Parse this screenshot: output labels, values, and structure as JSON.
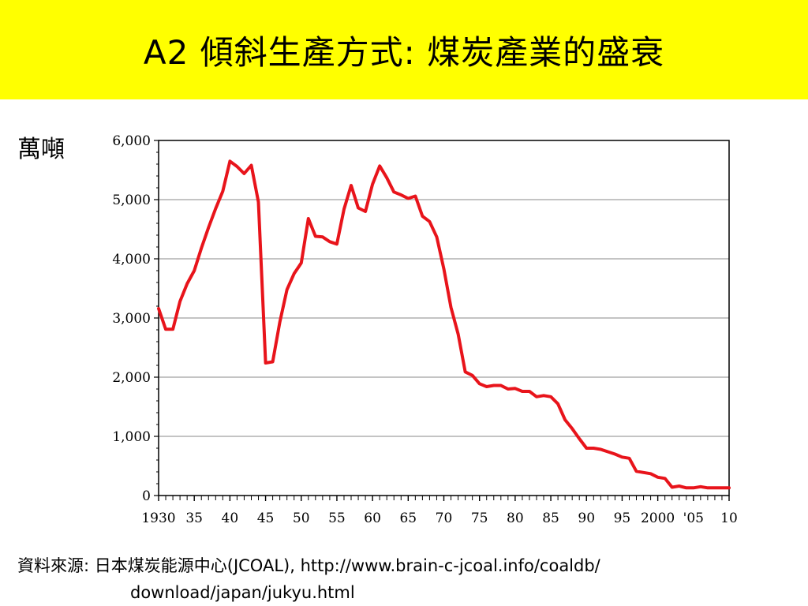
{
  "title": "A2  傾斜生產方式: 煤炭產業的盛衰",
  "unit_label": "萬噸",
  "source": {
    "line1": "資料來源:  日本煤炭能源中心(JCOAL), http://www.brain-c-jcoal.info/coaldb/",
    "line2": "download/japan/jukyu.html"
  },
  "colors": {
    "title_background": "#ffff00",
    "series_line": "#e8141b",
    "grid": "#888888"
  },
  "chart_data": {
    "type": "line",
    "title": "",
    "xlabel": "",
    "ylabel": "萬噸",
    "xlim": [
      1930,
      2010
    ],
    "ylim": [
      0,
      6000
    ],
    "grid": true,
    "y_ticks": [
      0,
      1000,
      2000,
      3000,
      4000,
      5000,
      6000
    ],
    "y_tick_labels": [
      "0",
      "1,000",
      "2,000",
      "3,000",
      "4,000",
      "5,000",
      "6,000"
    ],
    "x_ticks": [
      1930,
      1935,
      1940,
      1945,
      1950,
      1955,
      1960,
      1965,
      1970,
      1975,
      1980,
      1985,
      1990,
      1995,
      2000,
      2005,
      2010
    ],
    "x_tick_labels": [
      "1930",
      "35",
      "40",
      "45",
      "50",
      "55",
      "60",
      "65",
      "70",
      "75",
      "80",
      "85",
      "90",
      "95",
      "2000",
      "'05",
      "10"
    ],
    "series": [
      {
        "values": [
          [
            1930,
            3160
          ],
          [
            1931,
            2810
          ],
          [
            1932,
            2810
          ],
          [
            1933,
            3280
          ],
          [
            1934,
            3580
          ],
          [
            1935,
            3800
          ],
          [
            1936,
            4180
          ],
          [
            1937,
            4530
          ],
          [
            1938,
            4850
          ],
          [
            1939,
            5140
          ],
          [
            1940,
            5650
          ],
          [
            1941,
            5560
          ],
          [
            1942,
            5440
          ],
          [
            1943,
            5580
          ],
          [
            1944,
            4960
          ],
          [
            1945,
            2240
          ],
          [
            1946,
            2260
          ],
          [
            1947,
            2930
          ],
          [
            1948,
            3480
          ],
          [
            1949,
            3750
          ],
          [
            1950,
            3930
          ],
          [
            1951,
            4680
          ],
          [
            1952,
            4380
          ],
          [
            1953,
            4370
          ],
          [
            1954,
            4290
          ],
          [
            1955,
            4250
          ],
          [
            1956,
            4840
          ],
          [
            1957,
            5240
          ],
          [
            1958,
            4860
          ],
          [
            1959,
            4800
          ],
          [
            1960,
            5260
          ],
          [
            1961,
            5570
          ],
          [
            1962,
            5370
          ],
          [
            1963,
            5130
          ],
          [
            1964,
            5080
          ],
          [
            1965,
            5020
          ],
          [
            1966,
            5060
          ],
          [
            1967,
            4720
          ],
          [
            1968,
            4630
          ],
          [
            1969,
            4370
          ],
          [
            1970,
            3830
          ],
          [
            1971,
            3180
          ],
          [
            1972,
            2730
          ],
          [
            1973,
            2090
          ],
          [
            1974,
            2030
          ],
          [
            1975,
            1890
          ],
          [
            1976,
            1840
          ],
          [
            1977,
            1860
          ],
          [
            1978,
            1860
          ],
          [
            1979,
            1800
          ],
          [
            1980,
            1810
          ],
          [
            1981,
            1760
          ],
          [
            1982,
            1760
          ],
          [
            1983,
            1670
          ],
          [
            1984,
            1690
          ],
          [
            1985,
            1670
          ],
          [
            1986,
            1550
          ],
          [
            1987,
            1280
          ],
          [
            1988,
            1130
          ],
          [
            1989,
            960
          ],
          [
            1990,
            800
          ],
          [
            1991,
            800
          ],
          [
            1992,
            780
          ],
          [
            1993,
            740
          ],
          [
            1994,
            700
          ],
          [
            1995,
            650
          ],
          [
            1996,
            630
          ],
          [
            1997,
            410
          ],
          [
            1998,
            390
          ],
          [
            1999,
            370
          ],
          [
            2000,
            310
          ],
          [
            2001,
            290
          ],
          [
            2002,
            140
          ],
          [
            2003,
            160
          ],
          [
            2004,
            130
          ],
          [
            2005,
            130
          ],
          [
            2006,
            150
          ],
          [
            2007,
            130
          ],
          [
            2008,
            130
          ],
          [
            2009,
            130
          ],
          [
            2010,
            130
          ]
        ]
      }
    ]
  }
}
